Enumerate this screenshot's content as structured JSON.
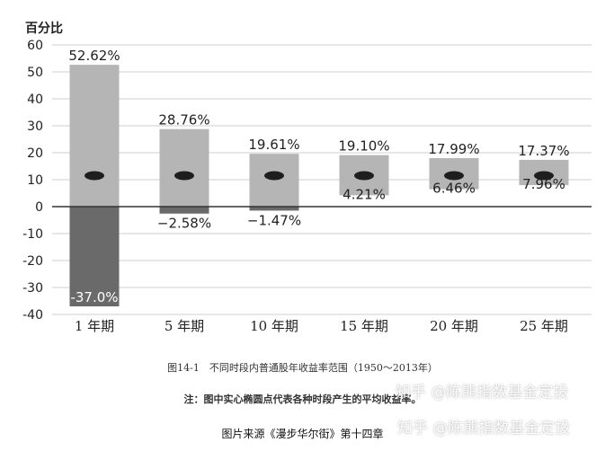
{
  "chart_data": {
    "type": "bar",
    "ylabel": "百分比",
    "ylim": [
      -40,
      60
    ],
    "yticks": [
      60,
      50,
      40,
      30,
      20,
      10,
      0,
      -10,
      -20,
      -30,
      -40
    ],
    "grid": true,
    "categories": [
      "1 年期",
      "5 年期",
      "10 年期",
      "15 年期",
      "20 年期",
      "25 年期"
    ],
    "max_values": [
      52.62,
      28.76,
      19.61,
      19.1,
      17.99,
      17.37
    ],
    "min_values": [
      -37.0,
      -2.58,
      -1.47,
      4.21,
      6.46,
      7.96
    ],
    "max_labels": [
      "52.62%",
      "28.76%",
      "19.61%",
      "19.10%",
      "17.99%",
      "17.37%"
    ],
    "min_labels": [
      "-37.0%",
      "−2.58%",
      "−1.47%",
      "4.21%",
      "6.46%",
      "7.96%"
    ],
    "average_values": [
      11.5,
      11.5,
      11.5,
      11.5,
      11.5,
      11.5
    ]
  },
  "colors": {
    "bar_positive": "#b5b5b5",
    "bar_negative": "#6a6a6a",
    "average_marker": "#1e1e1e",
    "grid": "#cfcfcf",
    "zero_line": "#333333"
  },
  "captions": {
    "title": "图14-1　不同时段内普通股年收益率范围（1950～2013年）",
    "note": "注：图中实心椭圆点代表各种时段产生的平均收益率。",
    "source": "图片来源《漫步华尔街》第十四章"
  },
  "watermarks": {
    "first": "知乎 @陈熊指数基金定投",
    "second": "知乎 @陈熊指数基金定投"
  }
}
